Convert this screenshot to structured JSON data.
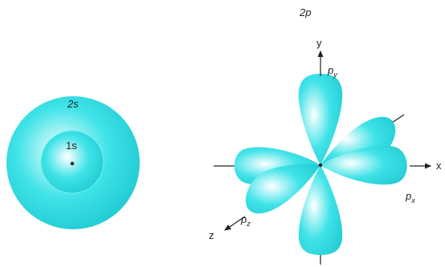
{
  "colors": {
    "orbital_fill": "#3fe3e8",
    "orbital_light": "#ffffff",
    "orbital_dark": "#22cbd3",
    "axis": "#222222",
    "background": "#ffffff"
  },
  "s_orbitals": {
    "outer_label": "2s",
    "inner_label": "1s"
  },
  "p_orbitals": {
    "title": "2p",
    "axes": {
      "x": "x",
      "y": "y",
      "z": "z"
    },
    "lobes": {
      "px_main": "p",
      "px_sub": "x",
      "py_main": "p",
      "py_sub": "y",
      "pz_main": "p",
      "pz_sub": "z"
    }
  }
}
